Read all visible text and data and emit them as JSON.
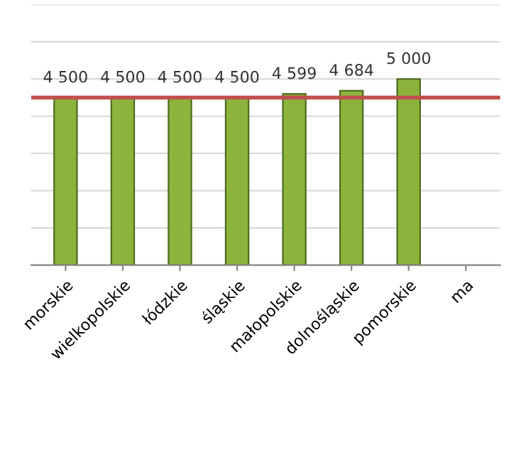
{
  "chart_data": {
    "type": "bar",
    "categories": [
      "morskie",
      "wielkopolskie",
      "łódzkie",
      "śląskie",
      "małopolskie",
      "dolnośląskie",
      "pomorskie",
      "ma"
    ],
    "values": [
      4500,
      4500,
      4500,
      4500,
      4599,
      4684,
      5000,
      null
    ],
    "value_labels": [
      "4 500",
      "4 500",
      "4 500",
      "4 500",
      "4 599",
      "4 684",
      "5 000",
      null
    ],
    "color": "#8cb43c",
    "ylim": [
      0,
      7000
    ],
    "yticks": [
      {
        "value": 0,
        "label": null
      },
      {
        "value": 1000,
        "label": null
      },
      {
        "value": 2000,
        "label": null
      },
      {
        "value": 3000,
        "label": null
      },
      {
        "value": 4000,
        "label": null
      },
      {
        "value": 5000,
        "label": null
      },
      {
        "value": 6000,
        "label": null
      },
      {
        "value": 7000,
        "label": null
      }
    ],
    "grid": "y",
    "legend": false,
    "tick_labels": "x",
    "ref_lines": [
      {
        "axis": "y",
        "value": 4500,
        "color": "#c0504d",
        "line_style": "solid"
      }
    ]
  }
}
